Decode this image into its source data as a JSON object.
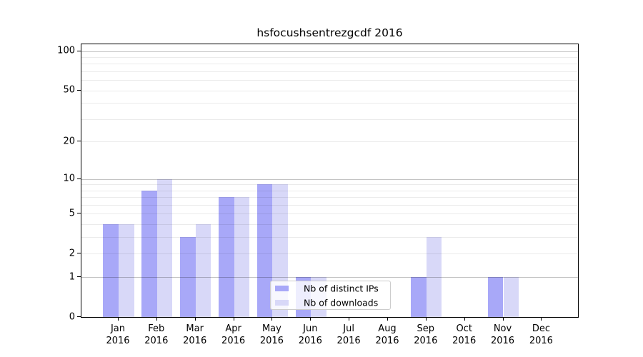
{
  "chart_data": {
    "type": "bar",
    "title": "hsfocushsentrezgcdf 2016",
    "categories": [
      "Jan",
      "Feb",
      "Mar",
      "Apr",
      "May",
      "Jun",
      "Jul",
      "Aug",
      "Sep",
      "Oct",
      "Nov",
      "Dec"
    ],
    "category_year": "2016",
    "series": [
      {
        "name": "Nb of distinct IPs",
        "color": "#a8a8f8",
        "values": [
          4,
          8,
          3,
          7,
          9,
          1,
          0,
          0,
          1,
          0,
          1,
          0
        ]
      },
      {
        "name": "Nb of downloads",
        "color": "#d8d8f8",
        "values": [
          4,
          10,
          4,
          7,
          9,
          1,
          0,
          0,
          3,
          0,
          1,
          0
        ]
      }
    ],
    "xlabel": "",
    "ylabel": "",
    "y_axis": {
      "scale": "log1p",
      "ylim": [
        0,
        112.6
      ],
      "tick_values": [
        0,
        1,
        2,
        5,
        10,
        20,
        50,
        100
      ],
      "tick_labels": [
        "0",
        "1",
        "2",
        "5",
        "10",
        "20",
        "50",
        "100"
      ],
      "major_grid_values": [
        1,
        10,
        100
      ],
      "minor_grid_values": [
        2,
        3,
        4,
        5,
        6,
        7,
        8,
        9,
        20,
        30,
        40,
        50,
        60,
        70,
        80,
        90
      ]
    },
    "grid": "horizontal",
    "legend": {
      "position": "bottom-center",
      "entries": [
        "Nb of distinct IPs",
        "Nb of downloads"
      ]
    }
  },
  "colors": {
    "bar_distinct_ips": "#a8a8f8",
    "bar_downloads": "#d8d8f8",
    "major_gridline": "rgba(0,0,0,0.235)",
    "minor_gridline": "rgba(0,0,0,0.08)",
    "spine": "#000000",
    "legend_border": "#cccccc",
    "background": "#ffffff"
  }
}
